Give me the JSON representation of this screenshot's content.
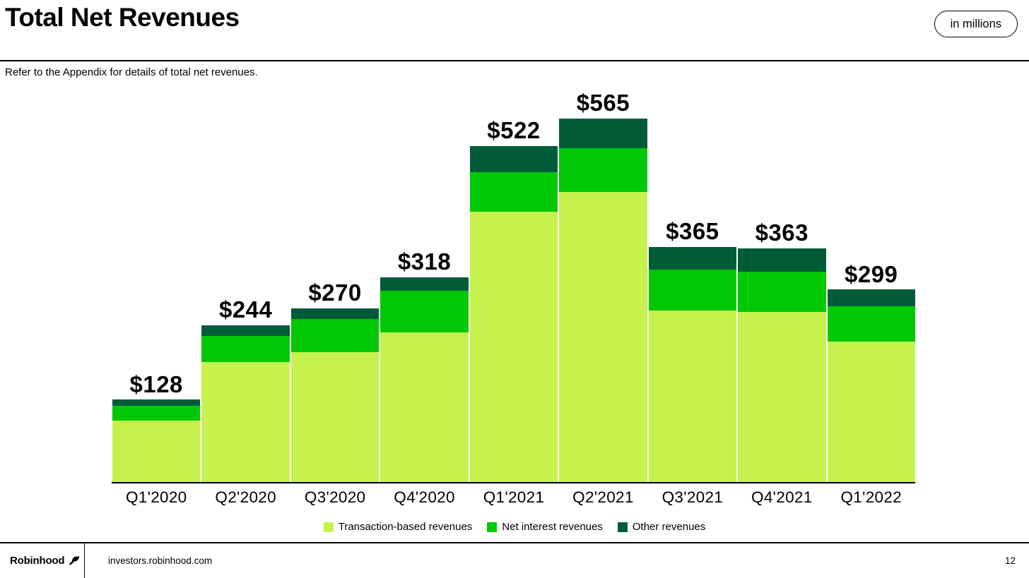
{
  "header": {
    "title": "Total Net Revenues",
    "units_label": "in millions",
    "subtitle": "Refer to the Appendix for details of total net revenues."
  },
  "chart_data": {
    "type": "bar",
    "stacked": true,
    "units": "USD millions",
    "legend_position": "bottom",
    "grid": false,
    "categories": [
      "Q1'2020",
      "Q2'2020",
      "Q3'2020",
      "Q4'2020",
      "Q1'2021",
      "Q2'2021",
      "Q3'2021",
      "Q4'2021",
      "Q1'2022"
    ],
    "series": [
      {
        "name": "Transaction-based revenues",
        "color": "#C6F24E",
        "values": [
          95,
          186,
          202,
          233,
          420,
          451,
          267,
          264,
          218
        ]
      },
      {
        "name": "Net interest revenues",
        "color": "#00C805",
        "values": [
          23,
          41,
          51,
          64,
          62,
          68,
          63,
          63,
          55
        ]
      },
      {
        "name": "Other revenues",
        "color": "#005C38",
        "values": [
          10,
          17,
          17,
          21,
          40,
          46,
          35,
          36,
          26
        ]
      }
    ],
    "stack_order_top_to_bottom": [
      "Other revenues",
      "Net interest revenues",
      "Transaction-based revenues"
    ],
    "totals": [
      128,
      244,
      270,
      318,
      522,
      565,
      365,
      363,
      299
    ],
    "total_labels": [
      "$128",
      "$244",
      "$270",
      "$318",
      "$522",
      "$565",
      "$365",
      "$363",
      "$299"
    ],
    "ylim": [
      0,
      608
    ]
  },
  "footer": {
    "brand": "Robinhood",
    "site": "investors.robinhood.com",
    "page_number": "12"
  }
}
